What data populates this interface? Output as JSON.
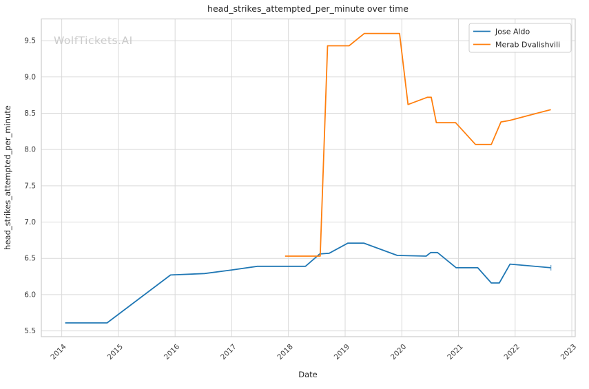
{
  "figure": {
    "watermark": "WolfTickets.AI"
  },
  "chart_data": {
    "type": "line",
    "title": "head_strikes_attempted_per_minute over time",
    "xlabel": "Date",
    "ylabel": "head_strikes_attempted_per_minute",
    "x_unit": "decimal_year",
    "xlim": [
      2013.64,
      2023.06
    ],
    "ylim": [
      5.42,
      9.8
    ],
    "x_ticks": [
      2014,
      2015,
      2016,
      2017,
      2018,
      2019,
      2020,
      2021,
      2022,
      2023
    ],
    "y_ticks": [
      5.5,
      6.0,
      6.5,
      7.0,
      7.5,
      8.0,
      8.5,
      9.0,
      9.5
    ],
    "grid": true,
    "legend": {
      "position": "upper right",
      "entries": [
        "Jose Aldo",
        "Merab Dvalishvili"
      ]
    },
    "series": [
      {
        "name": "Jose Aldo",
        "color": "#1f77b4",
        "end_marker": true,
        "points": [
          [
            2014.06,
            5.61
          ],
          [
            2014.8,
            5.61
          ],
          [
            2015.92,
            6.27
          ],
          [
            2016.52,
            6.29
          ],
          [
            2017.0,
            6.34
          ],
          [
            2017.45,
            6.39
          ],
          [
            2018.3,
            6.39
          ],
          [
            2018.55,
            6.56
          ],
          [
            2018.72,
            6.57
          ],
          [
            2019.05,
            6.71
          ],
          [
            2019.33,
            6.71
          ],
          [
            2019.92,
            6.54
          ],
          [
            2020.43,
            6.53
          ],
          [
            2020.51,
            6.58
          ],
          [
            2020.63,
            6.58
          ],
          [
            2020.96,
            6.37
          ],
          [
            2021.34,
            6.37
          ],
          [
            2021.58,
            6.16
          ],
          [
            2021.72,
            6.16
          ],
          [
            2021.91,
            6.42
          ],
          [
            2022.63,
            6.37
          ]
        ]
      },
      {
        "name": "Merab Dvalishvili",
        "color": "#ff7f0e",
        "end_marker": false,
        "points": [
          [
            2017.94,
            6.53
          ],
          [
            2018.56,
            6.53
          ],
          [
            2018.69,
            9.43
          ],
          [
            2019.07,
            9.43
          ],
          [
            2019.34,
            9.6
          ],
          [
            2019.96,
            9.6
          ],
          [
            2020.11,
            8.62
          ],
          [
            2020.45,
            8.72
          ],
          [
            2020.52,
            8.72
          ],
          [
            2020.61,
            8.37
          ],
          [
            2020.95,
            8.37
          ],
          [
            2021.3,
            8.07
          ],
          [
            2021.58,
            8.07
          ],
          [
            2021.75,
            8.38
          ],
          [
            2021.9,
            8.4
          ],
          [
            2022.63,
            8.55
          ]
        ]
      }
    ]
  },
  "style": {
    "background": "#ffffff",
    "grid_color": "#d9d9d9",
    "spine_color": "#cccccc",
    "title_color": "#262626",
    "tick_color": "#3b3b3b",
    "watermark_color": "#cbcbcb"
  }
}
